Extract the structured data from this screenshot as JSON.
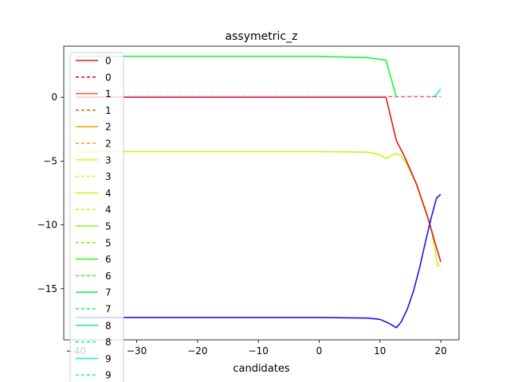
{
  "chart_data": {
    "type": "line",
    "title": "assymetric_z",
    "xlabel": "candidates",
    "ylabel": "",
    "xlim": [
      -42,
      23
    ],
    "ylim": [
      -19,
      4
    ],
    "xticks": [
      -40,
      -30,
      -20,
      -10,
      0,
      10,
      20
    ],
    "yticks": [
      0,
      -5,
      -10,
      -15
    ],
    "xtick_labels": [
      "−40",
      "−30",
      "−20",
      "−10",
      "0",
      "10",
      "20"
    ],
    "ytick_labels": [
      "0",
      "−5",
      "−10",
      "−15"
    ],
    "grid": false,
    "legend_position": "upper-left",
    "legend": [
      {
        "label": "0",
        "color": "#e8141c",
        "dash": false
      },
      {
        "label": "0",
        "color": "#e8141c",
        "dash": true
      },
      {
        "label": "1",
        "color": "#f0602a",
        "dash": false
      },
      {
        "label": "1",
        "color": "#f0602a",
        "dash": true
      },
      {
        "label": "2",
        "color": "#f7a018",
        "dash": false
      },
      {
        "label": "2",
        "color": "#f7a018",
        "dash": true
      },
      {
        "label": "3",
        "color": "#f3ee1c",
        "dash": false
      },
      {
        "label": "3",
        "color": "#f3ee1c",
        "dash": true
      },
      {
        "label": "4",
        "color": "#c8f51a",
        "dash": false
      },
      {
        "label": "4",
        "color": "#c8f51a",
        "dash": true
      },
      {
        "label": "5",
        "color": "#86f51a",
        "dash": false
      },
      {
        "label": "5",
        "color": "#86f51a",
        "dash": true
      },
      {
        "label": "6",
        "color": "#3cf51c",
        "dash": false
      },
      {
        "label": "6",
        "color": "#3cf51c",
        "dash": true
      },
      {
        "label": "7",
        "color": "#1cf543",
        "dash": false
      },
      {
        "label": "7",
        "color": "#1cf543",
        "dash": true
      },
      {
        "label": "8",
        "color": "#1cf58a",
        "dash": false
      },
      {
        "label": "8",
        "color": "#1cf58a",
        "dash": true
      },
      {
        "label": "9",
        "color": "#1cf5c8",
        "dash": false
      },
      {
        "label": "9",
        "color": "#1cf5c8",
        "dash": true
      }
    ],
    "series": [
      {
        "color": "#1cf543",
        "dash": false,
        "x": [
          -40,
          -20,
          0,
          8,
          11,
          12.7
        ],
        "y": [
          3.2,
          3.2,
          3.2,
          3.1,
          2.9,
          0
        ]
      },
      {
        "color": "#c8f51a",
        "dash": false,
        "x": [
          -40,
          -20,
          0,
          8,
          10,
          11,
          12,
          12.7,
          13.5,
          14.5,
          16,
          17.5,
          18.5,
          19.5,
          20
        ],
        "y": [
          -4.25,
          -4.25,
          -4.25,
          -4.3,
          -4.5,
          -4.8,
          -4.55,
          -4.4,
          -4.6,
          -5.3,
          -6.8,
          -8.8,
          -10.5,
          -13.2,
          -13.2
        ]
      },
      {
        "color": "#e8141c",
        "dash": false,
        "x": [
          -40,
          -20,
          0,
          10,
          11,
          12.7,
          14,
          16,
          18,
          19,
          20
        ],
        "y": [
          0,
          0,
          0,
          0,
          0,
          -3.4,
          -4.6,
          -6.8,
          -9.6,
          -11.3,
          -12.9
        ]
      },
      {
        "color": "#1a14e8",
        "dash": false,
        "x": [
          -40,
          -20,
          0,
          8,
          10,
          11,
          12,
          12.7,
          13.5,
          14.5,
          15.5,
          16.5,
          17.5,
          18.5,
          19.3,
          20
        ],
        "y": [
          -17.25,
          -17.25,
          -17.25,
          -17.3,
          -17.4,
          -17.6,
          -17.85,
          -18.05,
          -17.6,
          -16.6,
          -15.2,
          -13.4,
          -11.3,
          -9.3,
          -7.9,
          -7.6
        ]
      },
      {
        "color": "#1cf5c8",
        "dash": false,
        "x": [
          18.5,
          19.2,
          20
        ],
        "y": [
          0,
          0.15,
          0.65
        ]
      },
      {
        "color": "#f0609a",
        "dash": true,
        "x": [
          -40,
          0,
          10,
          20
        ],
        "y": [
          0.05,
          0.05,
          0.05,
          0.05
        ]
      }
    ]
  }
}
